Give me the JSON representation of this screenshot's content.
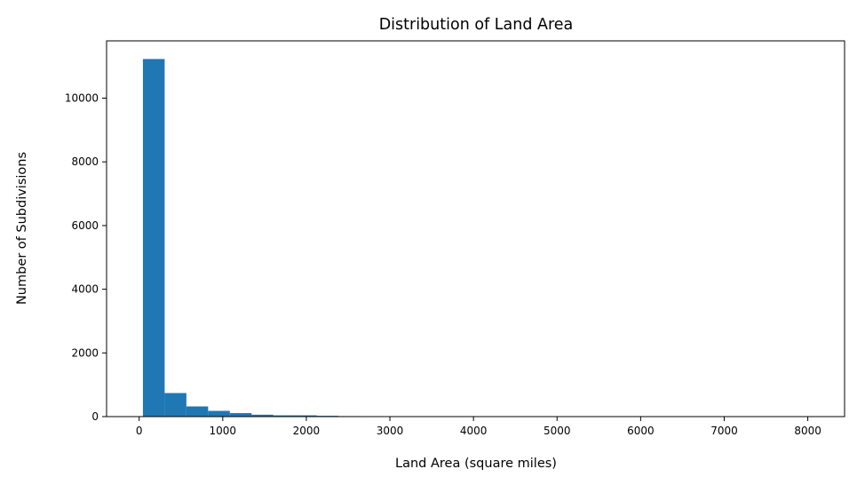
{
  "chart_data": {
    "type": "bar",
    "title": "Distribution of Land Area",
    "xlabel": "Land Area (square miles)",
    "ylabel": "Number of Subdivisions",
    "bin_width": 260,
    "bin_start": 45,
    "values": [
      11230,
      740,
      320,
      180,
      110,
      60,
      40,
      40,
      25,
      15,
      10,
      8,
      6,
      5,
      5,
      4,
      3,
      3,
      2,
      2,
      2,
      2,
      1,
      1,
      1,
      1,
      1,
      1,
      1,
      1
    ],
    "xlim": [
      -390,
      8440
    ],
    "ylim": [
      0,
      11800
    ],
    "x_ticks": [
      0,
      1000,
      2000,
      3000,
      4000,
      5000,
      6000,
      7000,
      8000
    ],
    "y_ticks": [
      0,
      2000,
      4000,
      6000,
      8000,
      10000
    ],
    "bar_color": "#1f77b4",
    "grid": false,
    "legend": "none"
  }
}
